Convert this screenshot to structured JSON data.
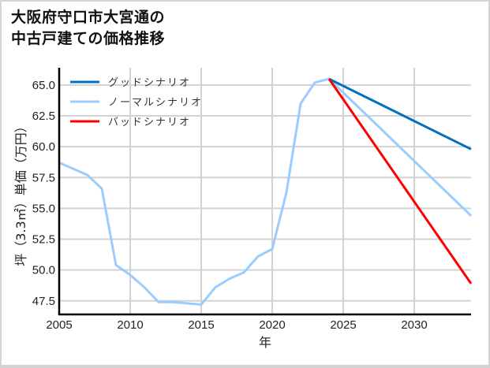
{
  "title": {
    "line1": "大阪府守口市大宮通の",
    "line2": "中古戸建ての価格推移"
  },
  "chart_data": {
    "type": "line",
    "title": "大阪府守口市大宮通の中古戸建ての価格推移",
    "xlabel": "年",
    "ylabel": "坪（3.3㎡）単価（万円）",
    "xlim": [
      2005,
      2034
    ],
    "ylim": [
      46.4,
      66.4
    ],
    "x_ticks": [
      2005,
      2010,
      2015,
      2020,
      2025,
      2030
    ],
    "y_ticks": [
      47.5,
      50.0,
      52.5,
      55.0,
      57.5,
      60.0,
      62.5,
      65.0
    ],
    "y_tick_labels": [
      "47.5",
      "50.0",
      "52.5",
      "55.0",
      "57.5",
      "60.0",
      "62.5",
      "65.0"
    ],
    "grid": true,
    "legend_position": "upper left",
    "series": [
      {
        "name": "グッドシナリオ",
        "color": "#0070C0",
        "x": [
          2024,
          2034
        ],
        "values": [
          65.5,
          59.8
        ]
      },
      {
        "name": "ノーマルシナリオ",
        "color": "#99CCFF",
        "x": [
          2005,
          2006,
          2007,
          2008,
          2009,
          2010,
          2011,
          2012,
          2013,
          2014,
          2015,
          2016,
          2017,
          2018,
          2019,
          2020,
          2021,
          2022,
          2023,
          2024,
          2034
        ],
        "values": [
          58.7,
          58.2,
          57.7,
          56.6,
          50.4,
          49.6,
          48.6,
          47.4,
          47.4,
          47.3,
          47.2,
          48.6,
          49.3,
          49.8,
          51.1,
          51.7,
          56.3,
          63.5,
          65.2,
          65.5,
          54.4
        ]
      },
      {
        "name": "バッドシナリオ",
        "color": "#FF0000",
        "x": [
          2024,
          2034
        ],
        "values": [
          65.5,
          48.9
        ]
      }
    ]
  }
}
